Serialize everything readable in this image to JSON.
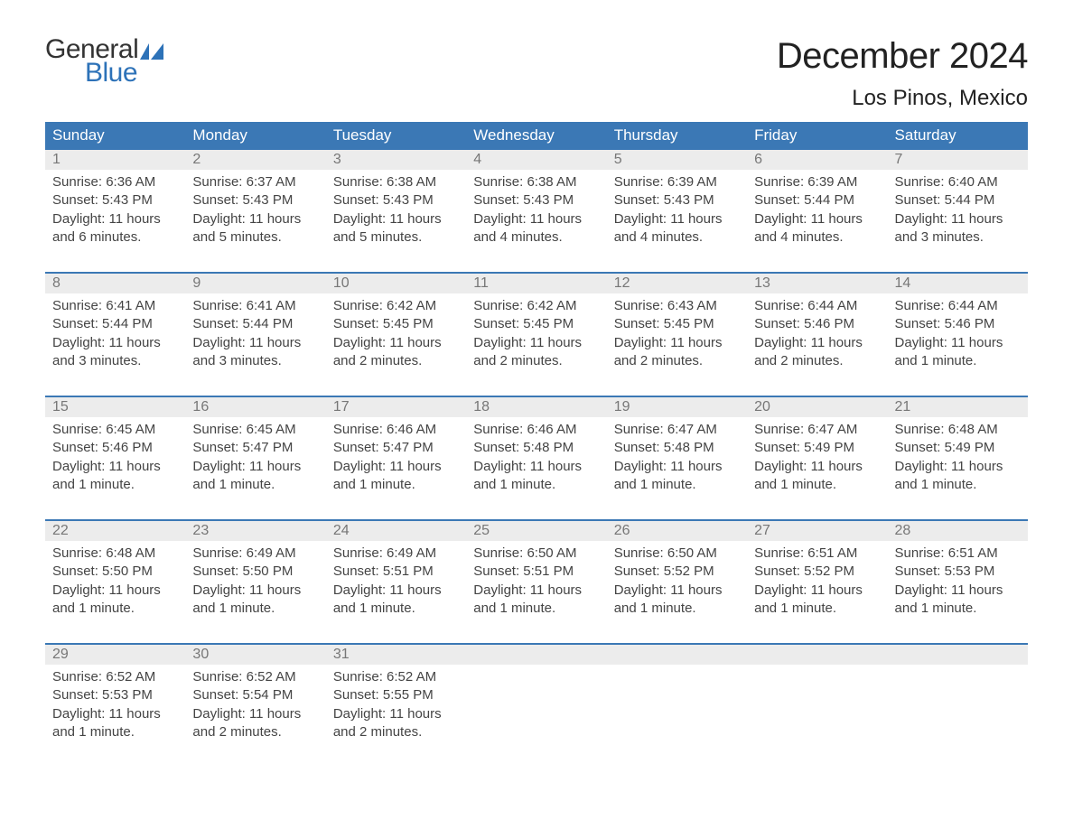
{
  "brand": {
    "word1": "General",
    "word2": "Blue",
    "accent_color": "#2d72b8"
  },
  "title": "December 2024",
  "location": "Los Pinos, Mexico",
  "colors": {
    "header_bg": "#3b78b5",
    "header_text": "#ffffff",
    "daynum_bg": "#ececec",
    "daynum_text": "#777777",
    "body_text": "#444444",
    "rule": "#3b78b5",
    "page_bg": "#ffffff"
  },
  "typography": {
    "title_fontsize": 40,
    "location_fontsize": 24,
    "header_fontsize": 17,
    "daynum_fontsize": 16,
    "cell_fontsize": 15
  },
  "day_headers": [
    "Sunday",
    "Monday",
    "Tuesday",
    "Wednesday",
    "Thursday",
    "Friday",
    "Saturday"
  ],
  "labels": {
    "sunrise": "Sunrise:",
    "sunset": "Sunset:",
    "daylight": "Daylight:"
  },
  "weeks": [
    [
      {
        "n": "1",
        "sunrise": "6:36 AM",
        "sunset": "5:43 PM",
        "daylight": "11 hours and 6 minutes."
      },
      {
        "n": "2",
        "sunrise": "6:37 AM",
        "sunset": "5:43 PM",
        "daylight": "11 hours and 5 minutes."
      },
      {
        "n": "3",
        "sunrise": "6:38 AM",
        "sunset": "5:43 PM",
        "daylight": "11 hours and 5 minutes."
      },
      {
        "n": "4",
        "sunrise": "6:38 AM",
        "sunset": "5:43 PM",
        "daylight": "11 hours and 4 minutes."
      },
      {
        "n": "5",
        "sunrise": "6:39 AM",
        "sunset": "5:43 PM",
        "daylight": "11 hours and 4 minutes."
      },
      {
        "n": "6",
        "sunrise": "6:39 AM",
        "sunset": "5:44 PM",
        "daylight": "11 hours and 4 minutes."
      },
      {
        "n": "7",
        "sunrise": "6:40 AM",
        "sunset": "5:44 PM",
        "daylight": "11 hours and 3 minutes."
      }
    ],
    [
      {
        "n": "8",
        "sunrise": "6:41 AM",
        "sunset": "5:44 PM",
        "daylight": "11 hours and 3 minutes."
      },
      {
        "n": "9",
        "sunrise": "6:41 AM",
        "sunset": "5:44 PM",
        "daylight": "11 hours and 3 minutes."
      },
      {
        "n": "10",
        "sunrise": "6:42 AM",
        "sunset": "5:45 PM",
        "daylight": "11 hours and 2 minutes."
      },
      {
        "n": "11",
        "sunrise": "6:42 AM",
        "sunset": "5:45 PM",
        "daylight": "11 hours and 2 minutes."
      },
      {
        "n": "12",
        "sunrise": "6:43 AM",
        "sunset": "5:45 PM",
        "daylight": "11 hours and 2 minutes."
      },
      {
        "n": "13",
        "sunrise": "6:44 AM",
        "sunset": "5:46 PM",
        "daylight": "11 hours and 2 minutes."
      },
      {
        "n": "14",
        "sunrise": "6:44 AM",
        "sunset": "5:46 PM",
        "daylight": "11 hours and 1 minute."
      }
    ],
    [
      {
        "n": "15",
        "sunrise": "6:45 AM",
        "sunset": "5:46 PM",
        "daylight": "11 hours and 1 minute."
      },
      {
        "n": "16",
        "sunrise": "6:45 AM",
        "sunset": "5:47 PM",
        "daylight": "11 hours and 1 minute."
      },
      {
        "n": "17",
        "sunrise": "6:46 AM",
        "sunset": "5:47 PM",
        "daylight": "11 hours and 1 minute."
      },
      {
        "n": "18",
        "sunrise": "6:46 AM",
        "sunset": "5:48 PM",
        "daylight": "11 hours and 1 minute."
      },
      {
        "n": "19",
        "sunrise": "6:47 AM",
        "sunset": "5:48 PM",
        "daylight": "11 hours and 1 minute."
      },
      {
        "n": "20",
        "sunrise": "6:47 AM",
        "sunset": "5:49 PM",
        "daylight": "11 hours and 1 minute."
      },
      {
        "n": "21",
        "sunrise": "6:48 AM",
        "sunset": "5:49 PM",
        "daylight": "11 hours and 1 minute."
      }
    ],
    [
      {
        "n": "22",
        "sunrise": "6:48 AM",
        "sunset": "5:50 PM",
        "daylight": "11 hours and 1 minute."
      },
      {
        "n": "23",
        "sunrise": "6:49 AM",
        "sunset": "5:50 PM",
        "daylight": "11 hours and 1 minute."
      },
      {
        "n": "24",
        "sunrise": "6:49 AM",
        "sunset": "5:51 PM",
        "daylight": "11 hours and 1 minute."
      },
      {
        "n": "25",
        "sunrise": "6:50 AM",
        "sunset": "5:51 PM",
        "daylight": "11 hours and 1 minute."
      },
      {
        "n": "26",
        "sunrise": "6:50 AM",
        "sunset": "5:52 PM",
        "daylight": "11 hours and 1 minute."
      },
      {
        "n": "27",
        "sunrise": "6:51 AM",
        "sunset": "5:52 PM",
        "daylight": "11 hours and 1 minute."
      },
      {
        "n": "28",
        "sunrise": "6:51 AM",
        "sunset": "5:53 PM",
        "daylight": "11 hours and 1 minute."
      }
    ],
    [
      {
        "n": "29",
        "sunrise": "6:52 AM",
        "sunset": "5:53 PM",
        "daylight": "11 hours and 1 minute."
      },
      {
        "n": "30",
        "sunrise": "6:52 AM",
        "sunset": "5:54 PM",
        "daylight": "11 hours and 2 minutes."
      },
      {
        "n": "31",
        "sunrise": "6:52 AM",
        "sunset": "5:55 PM",
        "daylight": "11 hours and 2 minutes."
      },
      null,
      null,
      null,
      null
    ]
  ]
}
